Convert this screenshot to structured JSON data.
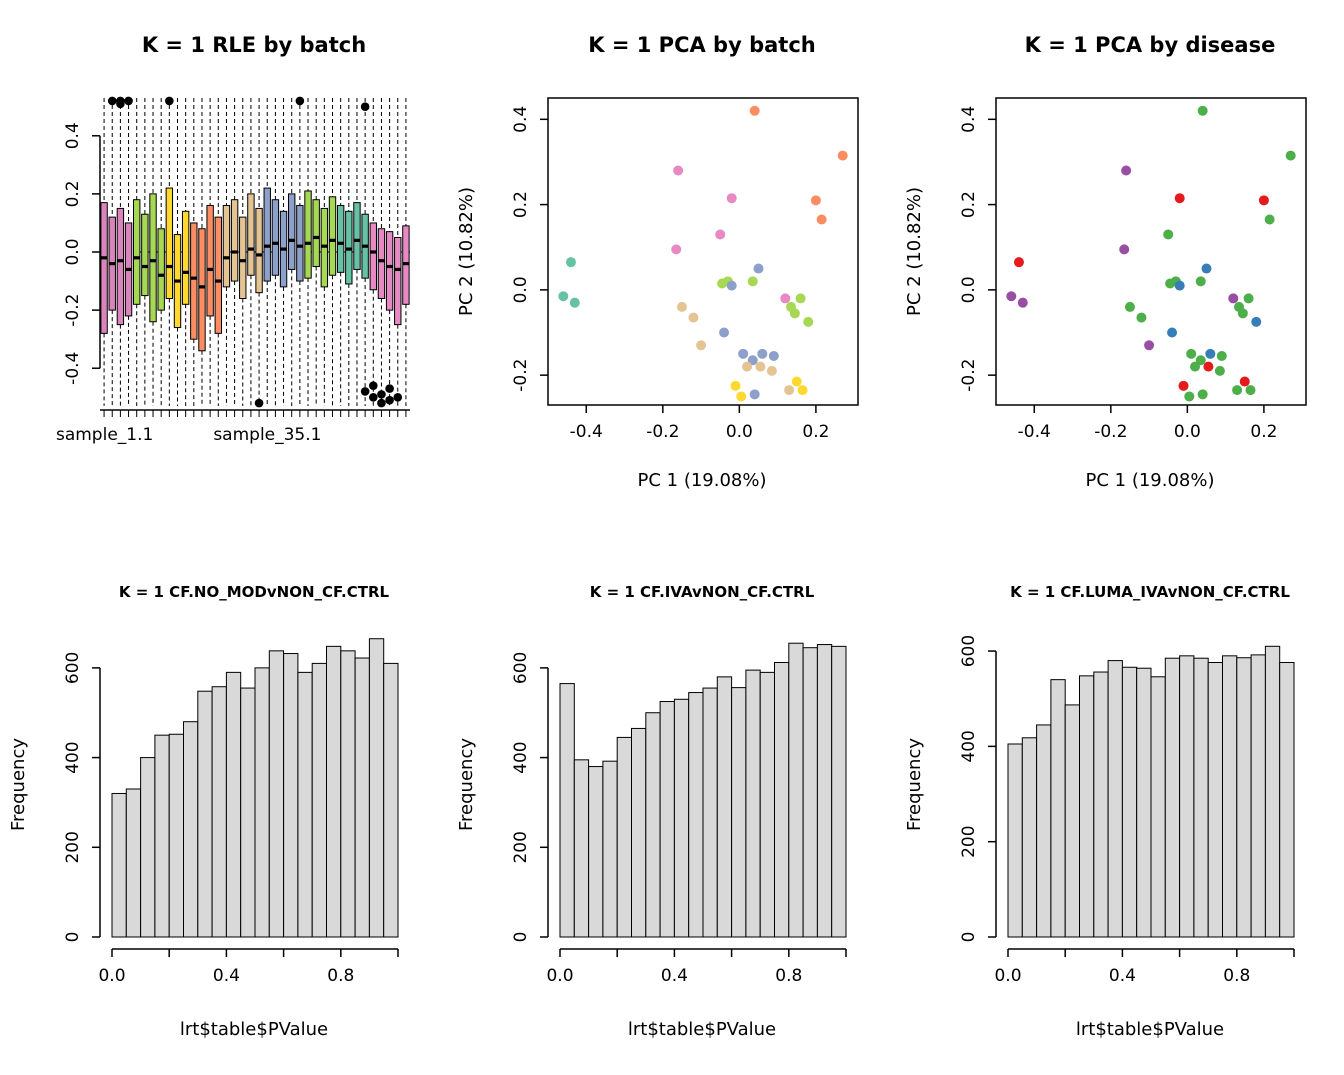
{
  "palettes": {
    "batch": {
      "teal": "#66C2A5",
      "orange": "#FC8D62",
      "blue": "#8DA0CB",
      "pink": "#E78AC3",
      "green": "#A6D854",
      "yellow": "#FFD92F",
      "tan": "#E5C494"
    },
    "disease": {
      "green": "#4DAF4A",
      "red": "#E41A1C",
      "blue": "#377EB8",
      "purple": "#984EA3"
    }
  },
  "chart_data": [
    {
      "type": "boxplot",
      "title": "K = 1 RLE by batch",
      "xlabel": "",
      "ylabel": "",
      "ylim": [
        -0.53,
        0.53
      ],
      "yticks": [
        -0.4,
        -0.2,
        0,
        0.2,
        0.4
      ],
      "ytick_labels": [
        "-0.4",
        "-0.2",
        "0.0",
        "0.2",
        "0.4"
      ],
      "x_labels": [
        {
          "text": "sample_1.1",
          "at": 0.015
        },
        {
          "text": "sample_35.1",
          "at": 0.54
        }
      ],
      "boxes": [
        [
          -0.02,
          -0.28,
          0.17,
          "#D984BB"
        ],
        [
          -0.04,
          -0.2,
          0.12,
          "#D984BB"
        ],
        [
          -0.03,
          -0.25,
          0.15,
          "#D984BB"
        ],
        [
          -0.06,
          -0.22,
          0.1,
          "#D984BB"
        ],
        [
          -0.02,
          -0.18,
          0.18,
          "#A6D854"
        ],
        [
          -0.05,
          -0.15,
          0.13,
          "#A6D854"
        ],
        [
          -0.03,
          -0.24,
          0.2,
          "#A6D854"
        ],
        [
          -0.08,
          -0.2,
          0.08,
          "#A6D854"
        ],
        [
          -0.05,
          -0.16,
          0.22,
          "#FFD92F"
        ],
        [
          -0.1,
          -0.26,
          0.06,
          "#FFD92F"
        ],
        [
          -0.07,
          -0.18,
          0.14,
          "#FFD92F"
        ],
        [
          -0.09,
          -0.3,
          0.1,
          "#FC8D62"
        ],
        [
          -0.12,
          -0.34,
          0.08,
          "#FC8D62"
        ],
        [
          -0.06,
          -0.22,
          0.16,
          "#FC8D62"
        ],
        [
          -0.1,
          -0.28,
          0.12,
          "#FC8D62"
        ],
        [
          -0.02,
          -0.12,
          0.16,
          "#E5C494"
        ],
        [
          0.0,
          -0.1,
          0.18,
          "#E5C494"
        ],
        [
          -0.03,
          -0.16,
          0.12,
          "#E5C494"
        ],
        [
          0.01,
          -0.08,
          0.2,
          "#E5C494"
        ],
        [
          -0.01,
          -0.14,
          0.15,
          "#E5C494"
        ],
        [
          0.02,
          -0.1,
          0.22,
          "#8DA0CB"
        ],
        [
          0.03,
          -0.08,
          0.18,
          "#8DA0CB"
        ],
        [
          0.01,
          -0.12,
          0.14,
          "#8DA0CB"
        ],
        [
          0.04,
          -0.06,
          0.2,
          "#8DA0CB"
        ],
        [
          0.02,
          -0.1,
          0.16,
          "#8DA0CB"
        ],
        [
          0.03,
          -0.09,
          0.21,
          "#A6D854"
        ],
        [
          0.05,
          -0.05,
          0.18,
          "#A6D854"
        ],
        [
          0.02,
          -0.12,
          0.15,
          "#A6D854"
        ],
        [
          0.04,
          -0.08,
          0.19,
          "#A6D854"
        ],
        [
          0.03,
          -0.07,
          0.16,
          "#66C2A5"
        ],
        [
          0.01,
          -0.11,
          0.14,
          "#66C2A5"
        ],
        [
          0.04,
          -0.06,
          0.17,
          "#66C2A5"
        ],
        [
          0.02,
          -0.09,
          0.13,
          "#66C2A5"
        ],
        [
          0.0,
          -0.13,
          0.1,
          "#E78AC3"
        ],
        [
          -0.03,
          -0.16,
          0.08,
          "#E78AC3"
        ],
        [
          -0.05,
          -0.2,
          0.07,
          "#E78AC3"
        ],
        [
          -0.06,
          -0.25,
          0.05,
          "#E78AC3"
        ],
        [
          -0.04,
          -0.18,
          0.09,
          "#E78AC3"
        ]
      ],
      "outliers": [
        [
          2,
          0.53
        ],
        [
          3,
          0.55
        ],
        [
          3,
          0.51
        ],
        [
          4,
          0.54
        ],
        [
          9,
          0.52
        ],
        [
          25,
          0.53
        ],
        [
          33,
          0.5
        ],
        [
          20,
          -0.52
        ],
        [
          33,
          -0.48
        ],
        [
          34,
          -0.5
        ],
        [
          34,
          -0.46
        ],
        [
          35,
          -0.49
        ],
        [
          35,
          -0.52
        ],
        [
          36,
          -0.47
        ],
        [
          36,
          -0.51
        ],
        [
          37,
          -0.5
        ]
      ]
    },
    {
      "type": "scatter",
      "title": "K = 1 PCA by batch",
      "xlabel": "PC 1 (19.08%)",
      "ylabel": "PC 2 (10.82%)",
      "xlim": [
        -0.5,
        0.31
      ],
      "ylim": [
        -0.27,
        0.45
      ],
      "xticks": [
        -0.4,
        -0.2,
        0,
        0.2
      ],
      "xtick_labels": [
        "-0.4",
        "-0.2",
        "0.0",
        "0.2"
      ],
      "yticks": [
        -0.2,
        0,
        0.2,
        0.4
      ],
      "ytick_labels": [
        "-0.2",
        "0.0",
        "0.2",
        "0.4"
      ],
      "color_group": "batch",
      "points": [
        [
          -0.44,
          0.065,
          "teal"
        ],
        [
          -0.46,
          -0.015,
          "teal"
        ],
        [
          -0.43,
          -0.03,
          "teal"
        ],
        [
          0.04,
          0.42,
          "orange"
        ],
        [
          0.27,
          0.315,
          "orange"
        ],
        [
          0.2,
          0.21,
          "orange"
        ],
        [
          0.215,
          0.165,
          "orange"
        ],
        [
          -0.16,
          0.28,
          "pink"
        ],
        [
          -0.02,
          0.215,
          "pink"
        ],
        [
          -0.165,
          0.095,
          "pink"
        ],
        [
          -0.05,
          0.13,
          "pink"
        ],
        [
          0.12,
          -0.02,
          "pink"
        ],
        [
          0.135,
          -0.04,
          "green"
        ],
        [
          -0.03,
          0.02,
          "green"
        ],
        [
          -0.045,
          0.015,
          "green"
        ],
        [
          0.145,
          -0.055,
          "green"
        ],
        [
          0.16,
          -0.02,
          "green"
        ],
        [
          0.035,
          0.02,
          "green"
        ],
        [
          0.05,
          0.05,
          "blue"
        ],
        [
          -0.02,
          0.01,
          "blue"
        ],
        [
          -0.04,
          -0.1,
          "blue"
        ],
        [
          0.01,
          -0.15,
          "blue"
        ],
        [
          0.035,
          -0.165,
          "blue"
        ],
        [
          0.06,
          -0.15,
          "blue"
        ],
        [
          0.04,
          -0.245,
          "blue"
        ],
        [
          0.09,
          -0.155,
          "blue"
        ],
        [
          -0.15,
          -0.04,
          "tan"
        ],
        [
          -0.12,
          -0.065,
          "tan"
        ],
        [
          -0.1,
          -0.13,
          "tan"
        ],
        [
          0.02,
          -0.18,
          "tan"
        ],
        [
          0.055,
          -0.18,
          "tan"
        ],
        [
          0.085,
          -0.19,
          "tan"
        ],
        [
          0.13,
          -0.235,
          "tan"
        ],
        [
          -0.01,
          -0.225,
          "yellow"
        ],
        [
          0.005,
          -0.25,
          "yellow"
        ],
        [
          0.15,
          -0.215,
          "yellow"
        ],
        [
          0.165,
          -0.235,
          "yellow"
        ],
        [
          0.18,
          -0.075,
          "green"
        ]
      ]
    },
    {
      "type": "scatter",
      "title": "K = 1 PCA by disease",
      "xlabel": "PC 1 (19.08%)",
      "ylabel": "PC 2 (10.82%)",
      "xlim": [
        -0.5,
        0.31
      ],
      "ylim": [
        -0.27,
        0.45
      ],
      "xticks": [
        -0.4,
        -0.2,
        0,
        0.2
      ],
      "xtick_labels": [
        "-0.4",
        "-0.2",
        "0.0",
        "0.2"
      ],
      "yticks": [
        -0.2,
        0,
        0.2,
        0.4
      ],
      "ytick_labels": [
        "-0.2",
        "0.0",
        "0.2",
        "0.4"
      ],
      "color_group": "disease",
      "points": [
        [
          -0.44,
          0.065,
          "red"
        ],
        [
          -0.46,
          -0.015,
          "purple"
        ],
        [
          -0.43,
          -0.03,
          "purple"
        ],
        [
          0.04,
          0.42,
          "green"
        ],
        [
          0.27,
          0.315,
          "green"
        ],
        [
          0.2,
          0.21,
          "red"
        ],
        [
          0.215,
          0.165,
          "green"
        ],
        [
          -0.16,
          0.28,
          "purple"
        ],
        [
          -0.02,
          0.215,
          "red"
        ],
        [
          -0.165,
          0.095,
          "purple"
        ],
        [
          -0.05,
          0.13,
          "green"
        ],
        [
          0.12,
          -0.02,
          "purple"
        ],
        [
          0.135,
          -0.04,
          "green"
        ],
        [
          -0.03,
          0.02,
          "green"
        ],
        [
          -0.045,
          0.015,
          "green"
        ],
        [
          0.145,
          -0.055,
          "green"
        ],
        [
          0.16,
          -0.02,
          "green"
        ],
        [
          0.035,
          0.02,
          "green"
        ],
        [
          0.05,
          0.05,
          "blue"
        ],
        [
          -0.02,
          0.01,
          "blue"
        ],
        [
          -0.04,
          -0.1,
          "blue"
        ],
        [
          0.01,
          -0.15,
          "green"
        ],
        [
          0.035,
          -0.165,
          "green"
        ],
        [
          0.06,
          -0.15,
          "blue"
        ],
        [
          0.04,
          -0.245,
          "green"
        ],
        [
          0.09,
          -0.155,
          "green"
        ],
        [
          -0.15,
          -0.04,
          "green"
        ],
        [
          -0.12,
          -0.065,
          "green"
        ],
        [
          -0.1,
          -0.13,
          "purple"
        ],
        [
          0.02,
          -0.18,
          "green"
        ],
        [
          0.055,
          -0.18,
          "red"
        ],
        [
          0.085,
          -0.19,
          "green"
        ],
        [
          0.13,
          -0.235,
          "green"
        ],
        [
          -0.01,
          -0.225,
          "red"
        ],
        [
          0.005,
          -0.25,
          "green"
        ],
        [
          0.15,
          -0.215,
          "red"
        ],
        [
          0.165,
          -0.235,
          "green"
        ],
        [
          0.18,
          -0.075,
          "blue"
        ]
      ]
    },
    {
      "type": "histogram",
      "title": "K = 1 CF.NO_MODvNON_CF.CTRL",
      "xlabel": "lrt$table$PValue",
      "ylabel": "Frequency",
      "bin_start": 0,
      "bin_width": 0.05,
      "ymax": 680,
      "counts": [
        320,
        330,
        400,
        450,
        452,
        480,
        548,
        558,
        590,
        555,
        600,
        638,
        632,
        590,
        610,
        648,
        638,
        622,
        665,
        610
      ],
      "yticks": [
        0,
        200,
        400,
        600
      ],
      "ytick_labels": [
        "0",
        "200",
        "400",
        "600"
      ],
      "xticks": [
        0,
        0.2,
        0.4,
        0.6,
        0.8,
        1
      ],
      "xtick_labels": [
        "0.0",
        "",
        "0.4",
        "",
        "0.8",
        ""
      ]
    },
    {
      "type": "histogram",
      "title": "K = 1 CF.IVAvNON_CF.CTRL",
      "xlabel": "lrt$table$PValue",
      "ylabel": "Frequency",
      "bin_start": 0,
      "bin_width": 0.05,
      "ymax": 680,
      "counts": [
        565,
        395,
        380,
        392,
        445,
        465,
        500,
        525,
        530,
        545,
        555,
        580,
        556,
        595,
        590,
        612,
        655,
        645,
        652,
        648
      ],
      "yticks": [
        0,
        200,
        400,
        600
      ],
      "ytick_labels": [
        "0",
        "200",
        "400",
        "600"
      ],
      "xticks": [
        0,
        0.2,
        0.4,
        0.6,
        0.8,
        1
      ],
      "xtick_labels": [
        "0.0",
        "",
        "0.4",
        "",
        "0.8",
        ""
      ]
    },
    {
      "type": "histogram",
      "title": "K = 1 CF.LUMA_IVAvNON_CF.CTRL",
      "xlabel": "lrt$table$PValue",
      "ylabel": "Frequency",
      "bin_start": 0,
      "bin_width": 0.05,
      "ymax": 640,
      "counts": [
        405,
        418,
        445,
        540,
        487,
        548,
        556,
        580,
        566,
        564,
        546,
        585,
        590,
        585,
        576,
        590,
        586,
        592,
        610,
        576
      ],
      "yticks": [
        0,
        200,
        400,
        600
      ],
      "ytick_labels": [
        "0",
        "200",
        "400",
        "600"
      ],
      "xticks": [
        0,
        0.2,
        0.4,
        0.6,
        0.8,
        1
      ],
      "xtick_labels": [
        "0.0",
        "",
        "0.4",
        "",
        "0.8",
        ""
      ]
    }
  ]
}
